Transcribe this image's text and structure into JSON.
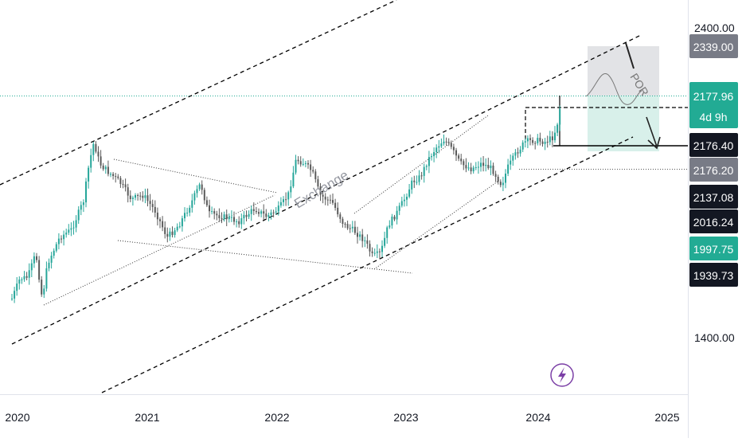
{
  "chart_data": {
    "type": "candlestick",
    "x_axis": {
      "labels": [
        "2020",
        "2021",
        "2022",
        "2023",
        "2024",
        "2025"
      ]
    },
    "y_axis": {
      "labels": [
        "2400.00",
        "1400.00"
      ]
    },
    "price_tags": [
      {
        "label": "2339.00",
        "bg": "#787b86",
        "fg": "#ffffff"
      },
      {
        "label": "2177.96",
        "sublabel": "4d 9h",
        "bg": "#22ab94",
        "fg": "#ffffff"
      },
      {
        "label": "2176.40",
        "bg": "#131722",
        "fg": "#ffffff"
      },
      {
        "label": "2176.20",
        "bg": "#787b86",
        "fg": "#ffffff"
      },
      {
        "label": "2137.08",
        "bg": "#131722",
        "fg": "#ffffff"
      },
      {
        "label": "2016.24",
        "bg": "#131722",
        "fg": "#ffffff"
      },
      {
        "label": "1997.75",
        "bg": "#22ab94",
        "fg": "#ffffff"
      },
      {
        "label": "1939.73",
        "bg": "#131722",
        "fg": "#ffffff"
      }
    ],
    "annotations": {
      "watermark": "Exchange",
      "pattern_label": "POR"
    },
    "colors": {
      "up": "#26a69a",
      "down": "#5a5a5a",
      "tp_zone": "#d8f0ea",
      "sl_zone": "#e2e3e6",
      "lines": "#000000",
      "price_line": "#22ab94"
    }
  },
  "footer": {
    "logo_icon": "lightning-icon"
  }
}
